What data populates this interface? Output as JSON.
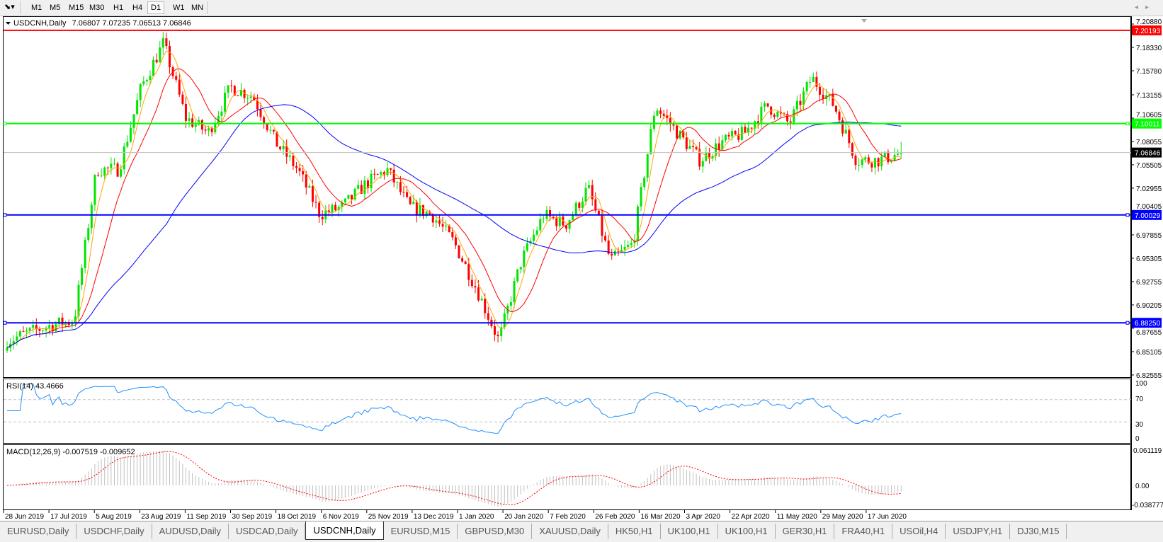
{
  "toolbar": {
    "timeframes": [
      "M1",
      "M5",
      "M15",
      "M30",
      "H1",
      "H4",
      "D1",
      "W1",
      "MN"
    ],
    "active_timeframe": "D1"
  },
  "chart": {
    "symbol_label": "USDCNH,Daily",
    "ohlc_label": "7.06807 7.07235 7.06513 7.06846",
    "price_axis": [
      "7.20880",
      "7.18330",
      "7.15780",
      "7.13155",
      "7.10605",
      "7.08055",
      "7.05505",
      "7.02955",
      "7.00405",
      "6.97855",
      "6.95305",
      "6.92755",
      "6.90205",
      "6.87655",
      "6.85105",
      "6.82555"
    ],
    "horizontal_lines": [
      {
        "price": 7.20193,
        "label": "7.20193",
        "color": "#ff0000"
      },
      {
        "price": 7.10011,
        "label": "7.10011",
        "color": "#00ff00"
      },
      {
        "price": 7.00029,
        "label": "7.00029",
        "color": "#0000ff"
      },
      {
        "price": 6.8825,
        "label": "6.88250",
        "color": "#0000ff"
      }
    ],
    "current_price": {
      "price": 7.06846,
      "label": "7.06846"
    },
    "colors": {
      "bull": "#00e600",
      "bear": "#ff0000",
      "ma_fast": "#ffa500",
      "ma_mid": "#ff0000",
      "ma_slow": "#0000ff"
    },
    "approx_closes": [
      6.863,
      6.872,
      6.88,
      6.885,
      7.05,
      7.05,
      7.14,
      7.188,
      7.106,
      7.09,
      7.14,
      7.13,
      7.08,
      7.05,
      7.001,
      7.009,
      7.033,
      7.05,
      7.009,
      7.001,
      6.97,
      6.92,
      6.863,
      6.95,
      7.0,
      6.99,
      7.03,
      6.95,
      6.969,
      7.12,
      7.09,
      7.06,
      7.08,
      7.09,
      7.12,
      7.1,
      7.15,
      7.12,
      7.06,
      7.06,
      7.068
    ]
  },
  "rsi": {
    "label": "RSI(14) 43.4666",
    "axis": [
      "100",
      "70",
      "30",
      "0"
    ],
    "color": "#1e90ff"
  },
  "macd": {
    "label": "MACD(12,26,9) -0.007519 -0.009652",
    "axis": [
      "0.061119",
      "0.00",
      "-0.038777"
    ],
    "signal_color": "#ff0000",
    "histogram_color": "#c0c0c0"
  },
  "date_axis": [
    "28 Jun 2019",
    "17 Jul 2019",
    "5 Aug 2019",
    "23 Aug 2019",
    "11 Sep 2019",
    "30 Sep 2019",
    "18 Oct 2019",
    "6 Nov 2019",
    "25 Nov 2019",
    "13 Dec 2019",
    "1 Jan 2020",
    "20 Jan 2020",
    "7 Feb 2020",
    "26 Feb 2020",
    "16 Mar 2020",
    "3 Apr 2020",
    "22 Apr 2020",
    "11 May 2020",
    "29 May 2020",
    "17 Jun 2020"
  ],
  "tabs": [
    "EURUSD,Daily",
    "USDCHF,Daily",
    "AUDUSD,Daily",
    "USDCAD,Daily",
    "USDCNH,Daily",
    "EURUSD,M15",
    "GBPUSD,M30",
    "XAUUSD,Daily",
    "HK50,H1",
    "UK100,H1",
    "UK100,H1",
    "GER30,H1",
    "FRA40,H1",
    "USOil,H4",
    "USDJPY,H1",
    "DJ30,M15"
  ],
  "active_tab": "USDCNH,Daily"
}
